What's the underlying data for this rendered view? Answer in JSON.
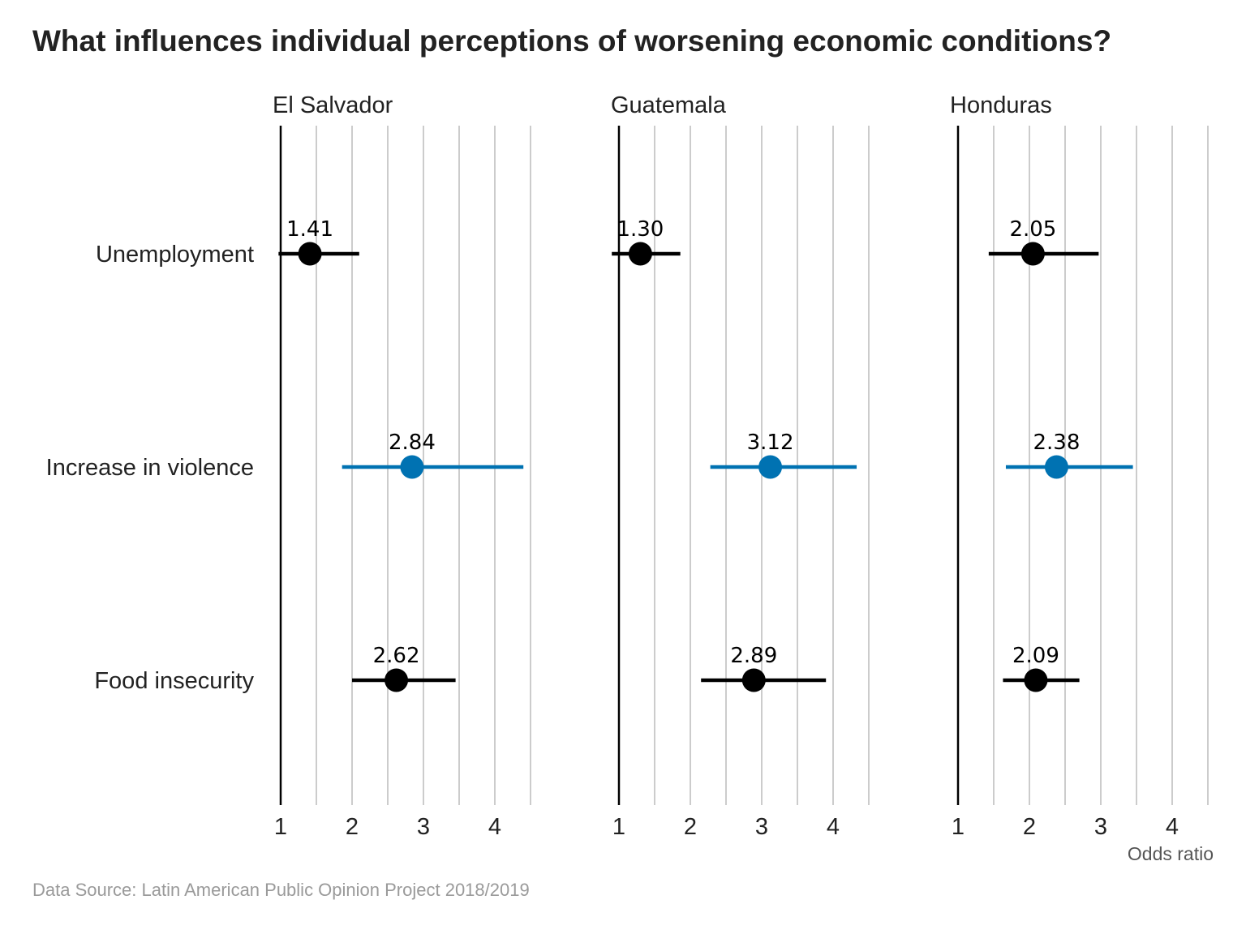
{
  "chart_data": {
    "type": "scatter",
    "title": "What influences individual perceptions of worsening economic conditions?",
    "source": "Data Source: Latin American Public Opinion Project 2018/2019",
    "xlabel": "Odds ratio",
    "xticks": [
      "1",
      "2",
      "3",
      "4"
    ],
    "xlim": [
      1,
      4.5
    ],
    "grid": true,
    "categories": [
      "Unemployment",
      "Increase in violence",
      "Food insecurity"
    ],
    "highlight_category": "Increase in violence",
    "colors": {
      "default": "#000000",
      "highlight": "#0072b2",
      "grid": "#cccccc",
      "reference_line": "#000000"
    },
    "panels": [
      {
        "name": "El Salvador",
        "points": [
          {
            "category": "Unemployment",
            "value": 1.41,
            "label": "1.41",
            "ci": [
              0.97,
              2.1
            ]
          },
          {
            "category": "Increase in violence",
            "value": 2.84,
            "label": "2.84",
            "ci": [
              1.86,
              4.4
            ]
          },
          {
            "category": "Food insecurity",
            "value": 2.62,
            "label": "2.62",
            "ci": [
              2.0,
              3.45
            ]
          }
        ]
      },
      {
        "name": "Guatemala",
        "points": [
          {
            "category": "Unemployment",
            "value": 1.3,
            "label": "1.30",
            "ci": [
              0.9,
              1.86
            ]
          },
          {
            "category": "Increase in violence",
            "value": 3.12,
            "label": "3.12",
            "ci": [
              2.28,
              4.33
            ]
          },
          {
            "category": "Food insecurity",
            "value": 2.89,
            "label": "2.89",
            "ci": [
              2.15,
              3.9
            ]
          }
        ]
      },
      {
        "name": "Honduras",
        "points": [
          {
            "category": "Unemployment",
            "value": 2.05,
            "label": "2.05",
            "ci": [
              1.43,
              2.97
            ]
          },
          {
            "category": "Increase in violence",
            "value": 2.38,
            "label": "2.38",
            "ci": [
              1.67,
              3.45
            ]
          },
          {
            "category": "Food insecurity",
            "value": 2.09,
            "label": "2.09",
            "ci": [
              1.63,
              2.7
            ]
          }
        ]
      }
    ]
  }
}
